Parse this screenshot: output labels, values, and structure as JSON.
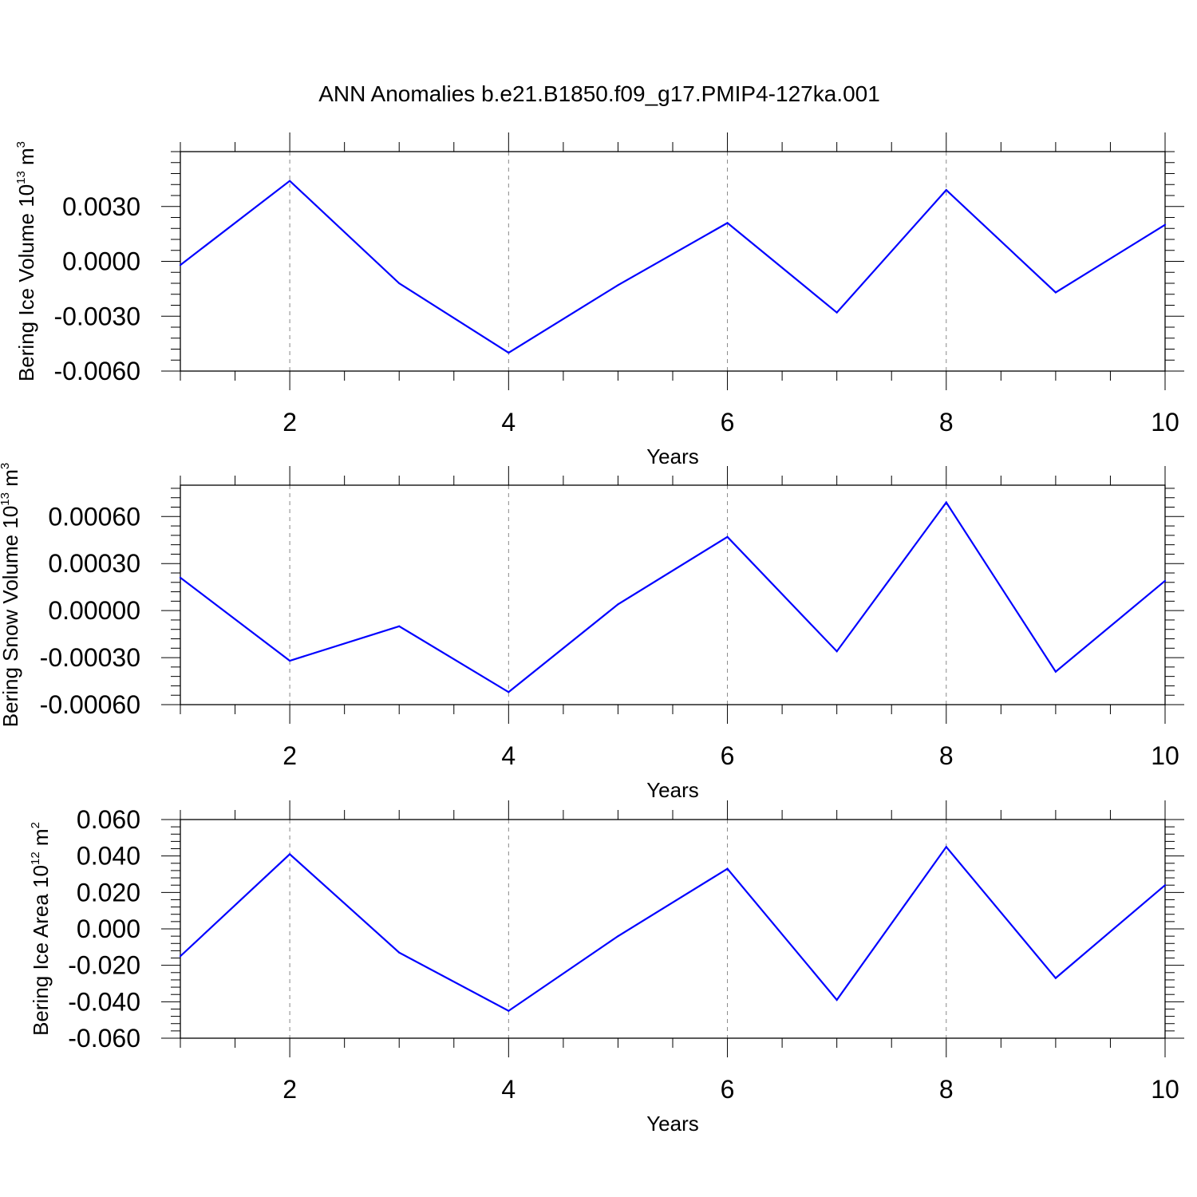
{
  "title": "ANN Anomalies b.e21.B1850.f09_g17.PMIP4-127ka.001",
  "colors": {
    "series": "#0000ff",
    "axis": "#000000",
    "grid": "#888888"
  },
  "chart_data": [
    {
      "type": "line",
      "xlabel": "Years",
      "ylabel_parts": [
        "Bering Ice Volume 10",
        "13",
        " m",
        "3"
      ],
      "xlim": [
        1,
        10
      ],
      "ylim": [
        -0.006,
        0.006
      ],
      "x_ticks": [
        2,
        4,
        6,
        8,
        10
      ],
      "y_ticks": [
        "0.0030",
        "0.0000",
        "-0.0030",
        "-0.0060"
      ],
      "y_tick_values": [
        0.003,
        0.0,
        -0.003,
        -0.006
      ],
      "grid": "vertical dashed at major x ticks",
      "x": [
        1,
        2,
        3,
        4,
        5,
        6,
        7,
        8,
        9,
        10
      ],
      "values": [
        -0.0002,
        0.0044,
        -0.0012,
        -0.005,
        -0.0013,
        0.0021,
        -0.0028,
        0.0039,
        -0.0017,
        0.002
      ]
    },
    {
      "type": "line",
      "xlabel": "Years",
      "ylabel_parts": [
        "Bering Snow Volume 10",
        "13",
        " m",
        "3"
      ],
      "xlim": [
        1,
        10
      ],
      "ylim": [
        -0.0006,
        0.0008
      ],
      "x_ticks": [
        2,
        4,
        6,
        8,
        10
      ],
      "y_ticks": [
        "0.00060",
        "0.00030",
        "0.00000",
        "-0.00030",
        "-0.00060"
      ],
      "y_tick_values": [
        0.0006,
        0.0003,
        0.0,
        -0.0003,
        -0.0006
      ],
      "grid": "vertical dashed at major x ticks",
      "x": [
        1,
        2,
        3,
        4,
        5,
        6,
        7,
        8,
        9,
        10
      ],
      "values": [
        0.00021,
        -0.00032,
        -0.0001,
        -0.00052,
        4e-05,
        0.00047,
        -0.00026,
        0.00069,
        -0.00039,
        0.00019
      ]
    },
    {
      "type": "line",
      "xlabel": "Years",
      "ylabel_parts": [
        "Bering Ice Area 10",
        "12",
        " m",
        "2"
      ],
      "xlim": [
        1,
        10
      ],
      "ylim": [
        -0.06,
        0.06
      ],
      "x_ticks": [
        2,
        4,
        6,
        8,
        10
      ],
      "y_ticks": [
        "0.060",
        "0.040",
        "0.020",
        "0.000",
        "-0.020",
        "-0.040",
        "-0.060"
      ],
      "y_tick_values": [
        0.06,
        0.04,
        0.02,
        0.0,
        -0.02,
        -0.04,
        -0.06
      ],
      "grid": "vertical dashed at major x ticks",
      "x": [
        1,
        2,
        3,
        4,
        5,
        6,
        7,
        8,
        9,
        10
      ],
      "values": [
        -0.015,
        0.041,
        -0.013,
        -0.045,
        -0.004,
        0.033,
        -0.039,
        0.045,
        -0.027,
        0.024
      ]
    }
  ]
}
